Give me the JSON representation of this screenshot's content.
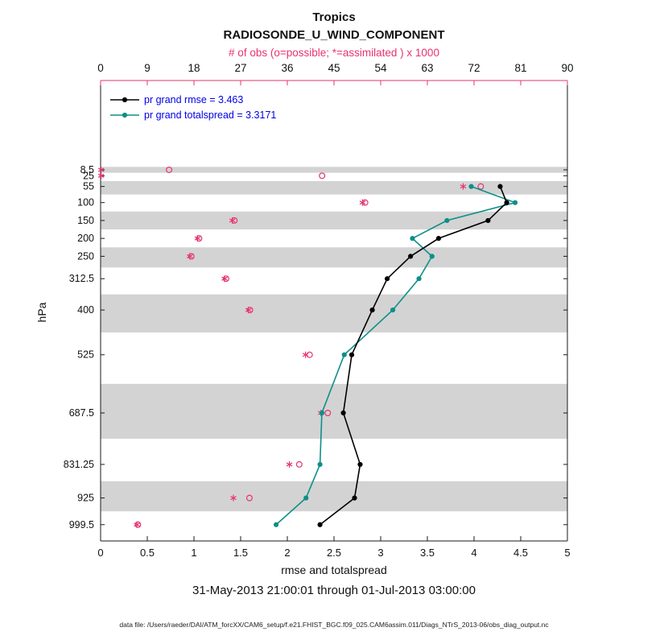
{
  "figure": {
    "region_title": "Tropics",
    "variable_title": "RADIOSONDE_U_WIND_COMPONENT",
    "top_axis_label": "# of obs (o=possible; *=assimilated ) x 1000",
    "xlabel": "rmse and totalspread",
    "ylabel": "hPa",
    "timespan": "31-May-2013 21:00:01 through 01-Jul-2013 03:00:00",
    "data_file_note": "data file: /Users/raeder/DAI/ATM_forcXX/CAM6_setup/f.e21.FHIST_BGC.f09_025.CAM6assim.011/Diags_NTrS_2013-06/obs_diag_output.nc"
  },
  "legend": {
    "entries": [
      {
        "series": "rmse",
        "label": "pr grand rmse = 3.463"
      },
      {
        "series": "totalspread",
        "label": "pr grand totalspread = 3.3171"
      }
    ]
  },
  "colors": {
    "obs": "#e8336d",
    "rmse": "#000000",
    "totalspread": "#0e8f88",
    "legend_text": "#0000e6",
    "band": "#d3d3d3",
    "axis": "#1a1a1a",
    "text": "#111111"
  },
  "chart_data": {
    "type": "line",
    "title": "Tropics",
    "subtitle": "RADIOSONDE_U_WIND_COMPONENT",
    "xlabel": "rmse and totalspread",
    "ylabel": "hPa",
    "timespan": "31-May-2013 21:00:01 through 01-Jul-2013 03:00:00",
    "grand_rmse": 3.463,
    "grand_totalspread": 3.3171,
    "xlim": [
      0,
      5
    ],
    "x_ticks": [
      0,
      0.5,
      1,
      1.5,
      2,
      2.5,
      3,
      3.5,
      4,
      4.5,
      5
    ],
    "top_axis": {
      "label": "# of obs (o=possible; *=assimilated ) x 1000",
      "lim": [
        0,
        90
      ],
      "ticks": [
        0,
        9,
        18,
        27,
        36,
        45,
        54,
        63,
        72,
        81,
        90
      ]
    },
    "y_axis_lim_hPa": [
      -241,
      1045
    ],
    "pressure_levels_hPa": [
      8.5,
      25,
      55,
      100,
      150,
      200,
      250,
      312.5,
      400,
      525,
      687.5,
      831.25,
      925,
      999.5
    ],
    "series": [
      {
        "name": "pr grand rmse",
        "summary_value": 3.463,
        "values": [
          null,
          null,
          4.28,
          4.35,
          4.15,
          3.62,
          3.32,
          3.07,
          2.91,
          2.69,
          2.6,
          2.78,
          2.72,
          2.35
        ]
      },
      {
        "name": "pr grand totalspread",
        "summary_value": 3.3171,
        "values": [
          null,
          null,
          3.97,
          4.44,
          3.71,
          3.34,
          3.55,
          3.41,
          3.13,
          2.61,
          2.37,
          2.35,
          2.2,
          1.88
        ]
      }
    ],
    "obs_counts_thousands": {
      "possible": [
        13.2,
        42.7,
        73.3,
        51.0,
        25.8,
        19.0,
        17.5,
        24.2,
        28.8,
        40.3,
        43.8,
        38.3,
        28.7,
        7.2
      ],
      "assimilated": [
        0.1,
        0.1,
        69.9,
        50.5,
        25.4,
        18.7,
        17.2,
        23.9,
        28.5,
        39.5,
        42.5,
        36.4,
        25.6,
        7.0
      ]
    },
    "shaded_band_level_indices": [
      0,
      2,
      4,
      6,
      8,
      10,
      12
    ],
    "legend_position": "top-left-inside",
    "grid": false
  }
}
